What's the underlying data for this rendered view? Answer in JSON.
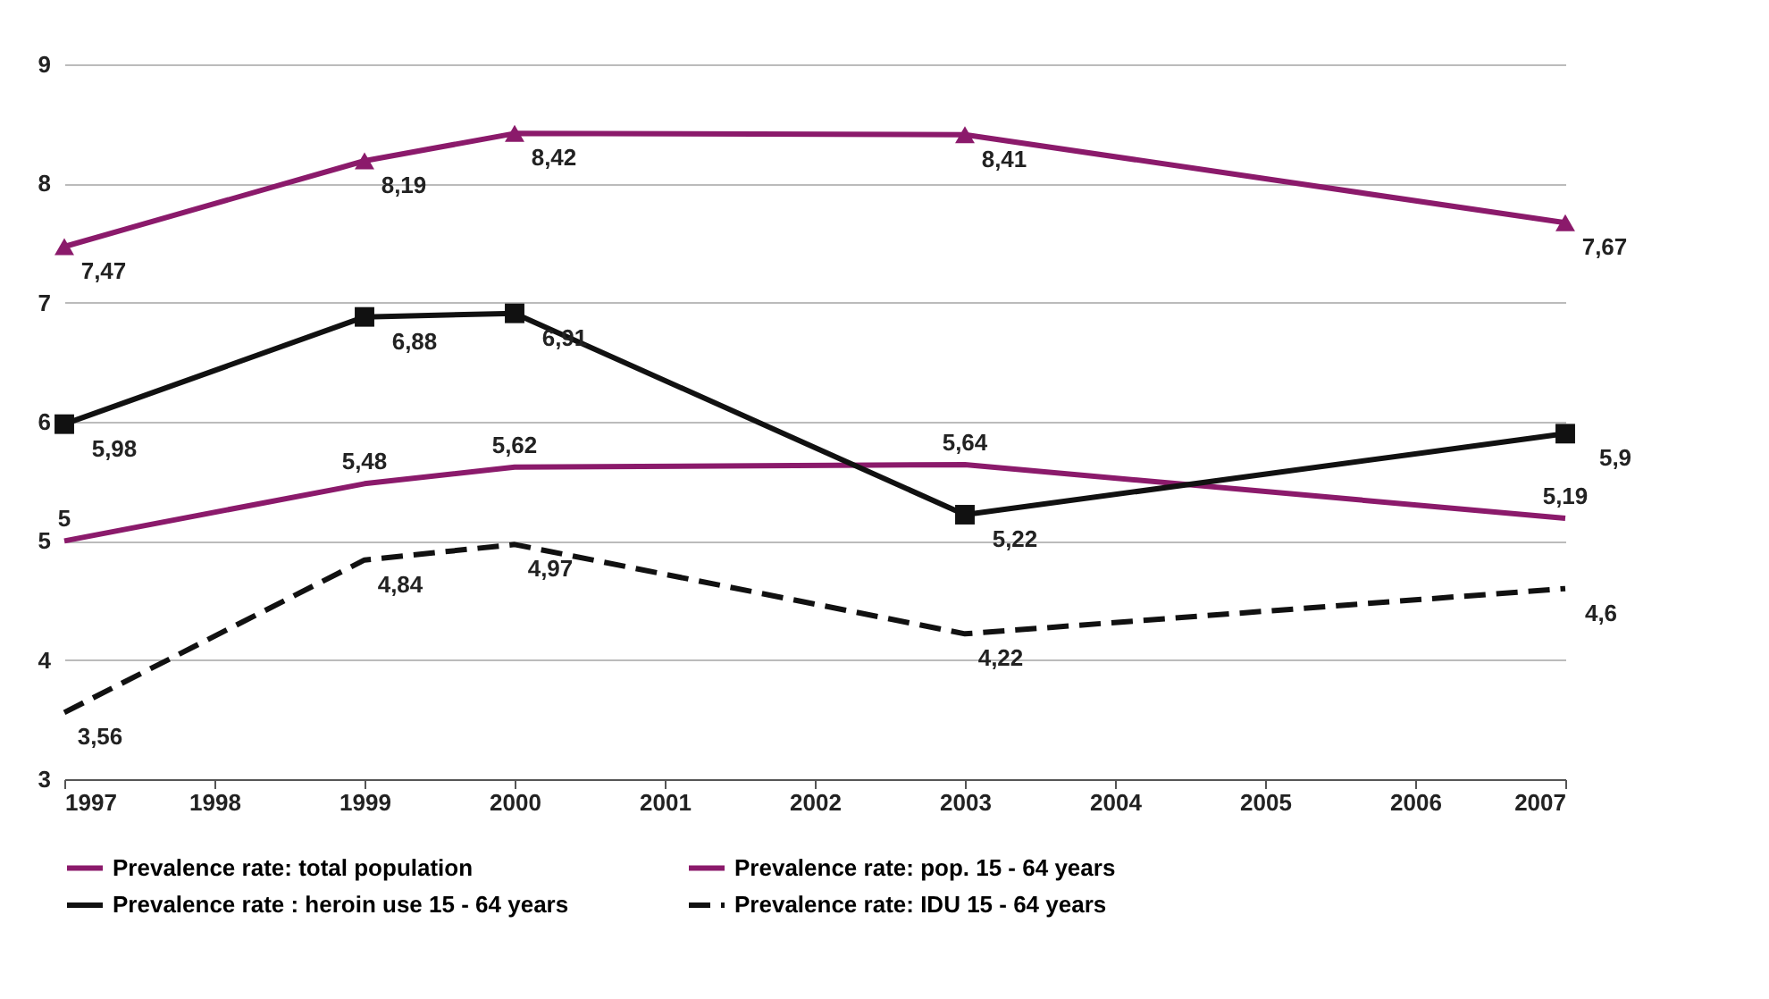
{
  "chart_data": {
    "type": "line",
    "xlim": [
      1997,
      2007
    ],
    "xticks": [
      1997,
      1998,
      1999,
      2000,
      2001,
      2002,
      2003,
      2004,
      2005,
      2006,
      2007
    ],
    "ylim": [
      3,
      9
    ],
    "yticks": [
      3,
      4,
      5,
      6,
      7,
      8,
      9
    ],
    "grid": "y",
    "legend": "bottom",
    "series": [
      {
        "name": "Prevalence rate: total population",
        "color": "#8b1a6b",
        "x": [
          1997,
          1999,
          2000,
          2003,
          2007
        ],
        "values": [
          5,
          5.48,
          5.62,
          5.64,
          5.19
        ],
        "value_labels": [
          "5",
          "5,48",
          "5,62",
          "5,64",
          "5,19"
        ],
        "marker": "none",
        "line_style": "solid"
      },
      {
        "name": "Prevalence rate: pop. 15 - 64 years",
        "color": "#8b1a6b",
        "x": [
          1997,
          1999,
          2000,
          2003,
          2007
        ],
        "values": [
          7.47,
          8.19,
          8.42,
          8.41,
          7.67
        ],
        "value_labels": [
          "7,47",
          "8,19",
          "8,42",
          "8,41",
          "7,67"
        ],
        "marker": "triangle",
        "line_style": "solid"
      },
      {
        "name": "Prevalence rate : heroin use 15 - 64 years",
        "color": "#111111",
        "x": [
          1997,
          1999,
          2000,
          2003,
          2007
        ],
        "values": [
          5.98,
          6.88,
          6.91,
          5.22,
          5.9
        ],
        "value_labels": [
          "5,98",
          "6,88",
          "6,91",
          "5,22",
          "5,9"
        ],
        "marker": "square",
        "line_style": "solid"
      },
      {
        "name": "Prevalence rate: IDU 15 - 64 years",
        "color": "#111111",
        "x": [
          1997,
          1999,
          2000,
          2003,
          2007
        ],
        "values": [
          3.56,
          4.84,
          4.97,
          4.22,
          4.6
        ],
        "value_labels": [
          "3,56",
          "4,84",
          "4,97",
          "4,22",
          "4,6"
        ],
        "marker": "none",
        "line_style": "dashed"
      }
    ]
  }
}
